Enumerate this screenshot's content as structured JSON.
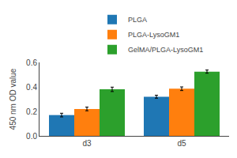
{
  "chart_data": {
    "type": "bar",
    "ylabel": "450 nm OD value",
    "categories": [
      "d3",
      "d5"
    ],
    "series": [
      {
        "name": "PLGA",
        "values": [
          0.17,
          0.32
        ],
        "errors": [
          0.015,
          0.012
        ]
      },
      {
        "name": "PLGA-LysoGM1",
        "values": [
          0.22,
          0.385
        ],
        "errors": [
          0.015,
          0.015
        ]
      },
      {
        "name": "GelMA/PLGA-LysoGM1",
        "values": [
          0.38,
          0.525
        ],
        "errors": [
          0.018,
          0.013
        ]
      }
    ],
    "ylim": [
      0.0,
      0.6
    ],
    "yticks": [
      {
        "value": 0.0,
        "label": "0.0"
      },
      0.2,
      0.4,
      0.6
    ],
    "grid": false,
    "legend": "top"
  }
}
